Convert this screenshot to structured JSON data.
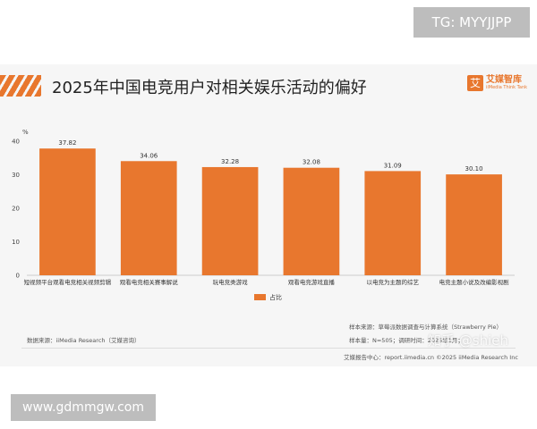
{
  "overlay": {
    "tg_label": "TG: MYYJJPP",
    "url_label": "www.gdmmgw.com",
    "zhihu_watermark": "知乎 @shieh"
  },
  "brand": {
    "logo_char": "艾",
    "name": "艾媒智库",
    "sub": "iiMedia Think Tank"
  },
  "chart_data": {
    "type": "bar",
    "title": "2025年中国电竞用户对相关娱乐活动的偏好",
    "ylabel": "%",
    "xlabel": "",
    "ylim": [
      0,
      40
    ],
    "yticks": [
      0,
      10,
      20,
      30,
      40
    ],
    "categories": [
      "短视频平台观看电竞相关视频剪辑",
      "观看电竞相关赛事解说",
      "玩电竞类游戏",
      "观看电竞游戏直播",
      "以电竞为主题的综艺",
      "电竞主题小说及改编影视剧"
    ],
    "series": [
      {
        "name": "占比",
        "values": [
          37.82,
          34.06,
          32.28,
          32.08,
          31.09,
          30.1
        ],
        "value_labels": [
          "37.82",
          "34.06",
          "32.28",
          "32.08",
          "31.09",
          "30.10"
        ]
      }
    ],
    "bar_color": "#e8772e",
    "legend_position": "bottom-center",
    "grid": false
  },
  "footer": {
    "source": "数据来源：iiMedia Research（艾媒咨询）",
    "sample_source": "样本来源：草莓派数据调查与计算系统（Strawberry Pie）",
    "sample_info": "样本量：N=505；调研时间：2025年1月；",
    "report_center": "艾媒报告中心：report.iimedia.cn  ©2025 iiMedia Research Inc"
  }
}
